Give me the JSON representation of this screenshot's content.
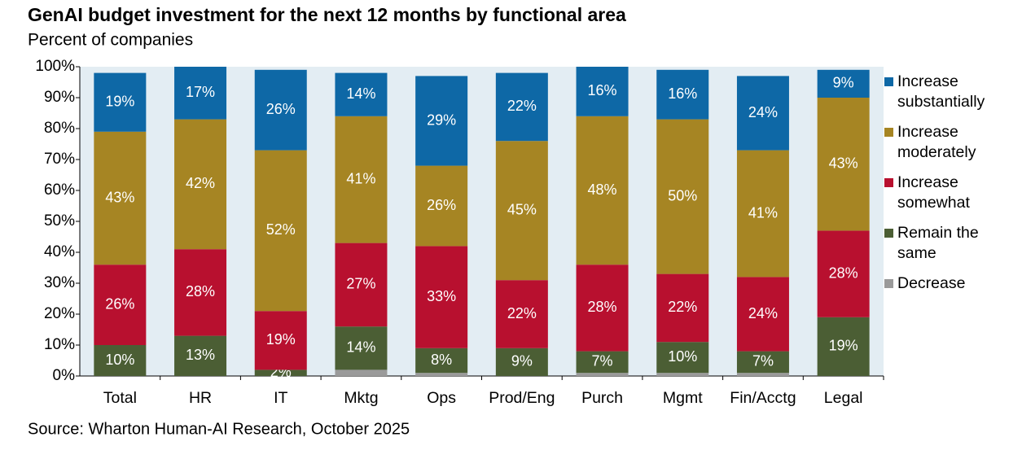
{
  "chart_data": {
    "type": "stacked_bar",
    "title": "GenAI budget investment for the next 12 months by functional area",
    "subtitle": "Percent of companies",
    "source": "Source: Wharton Human-AI Research, October 2025",
    "categories": [
      "Total",
      "HR",
      "IT",
      "Mktg",
      "Ops",
      "Prod/Eng",
      "Purch",
      "Mgmt",
      "Fin/Acctg",
      "Legal"
    ],
    "series": [
      {
        "name": "Decrease",
        "color": "#9a9a9a",
        "values": [
          0,
          0,
          0,
          2,
          1,
          0,
          1,
          1,
          1,
          0
        ]
      },
      {
        "name": "Remain the same",
        "color": "#4b5e34",
        "values": [
          10,
          13,
          2,
          14,
          8,
          9,
          7,
          10,
          7,
          19
        ],
        "value_labels": [
          "10%",
          "13%",
          "2%",
          "14%",
          "8%",
          "9%",
          "7%",
          "10%",
          "7%",
          "19%"
        ]
      },
      {
        "name": "Increase somewhat",
        "color": "#b8102f",
        "values": [
          26,
          28,
          19,
          27,
          33,
          22,
          28,
          22,
          24,
          28
        ],
        "value_labels": [
          "26%",
          "28%",
          "19%",
          "27%",
          "33%",
          "22%",
          "28%",
          "22%",
          "24%",
          "28%"
        ]
      },
      {
        "name": "Increase moderately",
        "color": "#a68523",
        "values": [
          43,
          42,
          52,
          41,
          26,
          45,
          48,
          50,
          41,
          43
        ],
        "value_labels": [
          "43%",
          "42%",
          "52%",
          "41%",
          "26%",
          "45%",
          "48%",
          "50%",
          "41%",
          "43%"
        ]
      },
      {
        "name": "Increase substantially",
        "color": "#0e68a6",
        "values": [
          19,
          17,
          26,
          14,
          29,
          22,
          16,
          16,
          24,
          9
        ],
        "value_labels": [
          "19%",
          "17%",
          "26%",
          "14%",
          "29%",
          "22%",
          "16%",
          "16%",
          "24%",
          "9%"
        ]
      }
    ],
    "ylim": [
      0,
      100
    ],
    "yticks": [
      {
        "value": 0,
        "label": "0%"
      },
      {
        "value": 10,
        "label": "10%"
      },
      {
        "value": 20,
        "label": "20%"
      },
      {
        "value": 30,
        "label": "30%"
      },
      {
        "value": 40,
        "label": "40%"
      },
      {
        "value": 50,
        "label": "50%"
      },
      {
        "value": 60,
        "label": "60%"
      },
      {
        "value": 70,
        "label": "70%"
      },
      {
        "value": 80,
        "label": "80%"
      },
      {
        "value": 90,
        "label": "90%"
      },
      {
        "value": 100,
        "label": "100%"
      }
    ],
    "grid": false,
    "legend": "right"
  }
}
